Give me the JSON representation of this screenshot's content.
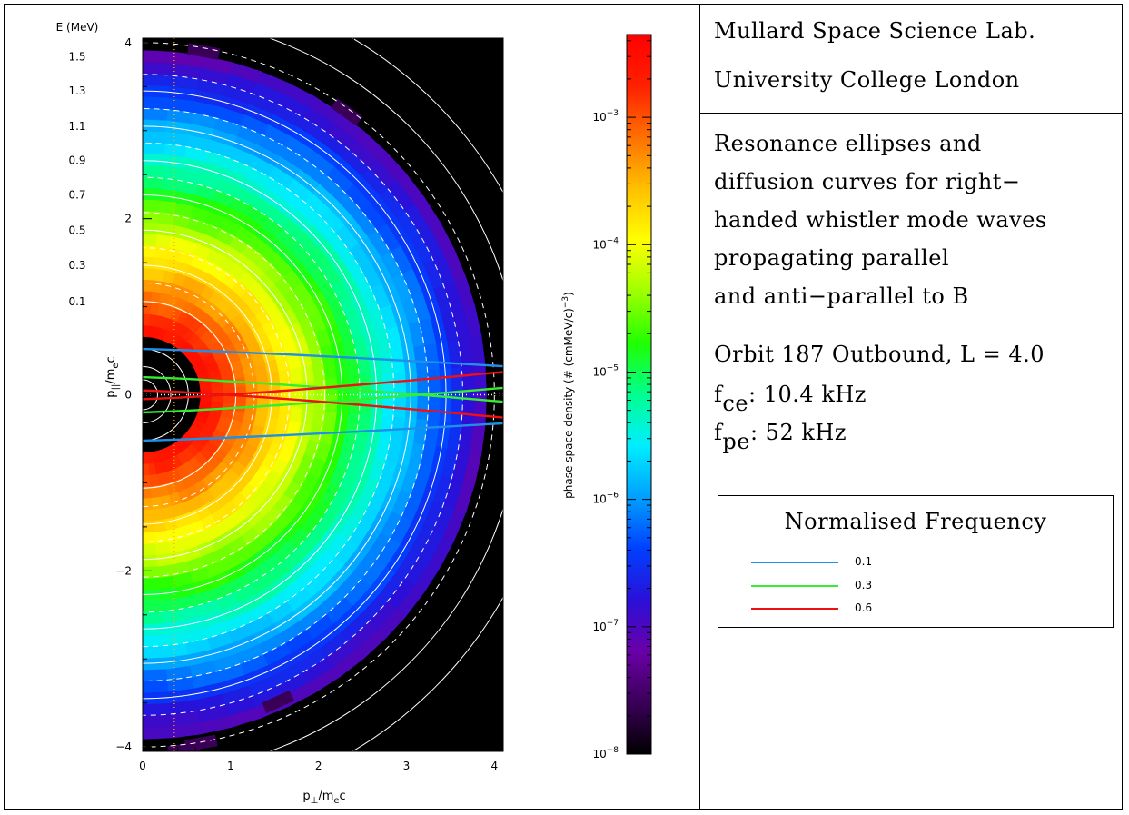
{
  "header": {
    "lab_lines": [
      "Mullard Space Science Lab.",
      "University College London"
    ]
  },
  "description": {
    "lines": [
      "Resonance ellipses and",
      "diffusion curves for right−",
      "handed whistler mode waves",
      "propagating parallel",
      "and anti−parallel to B"
    ],
    "orbit": "Orbit 187 Outbound, L = 4.0",
    "fce_sub": "ce",
    "fce_value": ": 10.4 kHz",
    "fpe_sub": "pe",
    "fpe_value": ": 52 kHz",
    "f_symbol": "f"
  },
  "legend": {
    "title": "Normalised Frequency",
    "entries": [
      {
        "label": "0.1",
        "color": "#1f8fe8"
      },
      {
        "label": "0.3",
        "color": "#33ee33"
      },
      {
        "label": "0.6",
        "color": "#ee1111"
      }
    ]
  },
  "colorbar": {
    "label_prefix": "phase space density (# (cmMeV/c)",
    "label_exp": "−3",
    "label_suffix": ")",
    "ticks": [
      {
        "mant": "10",
        "exp": "−3"
      },
      {
        "mant": "10",
        "exp": "−4"
      },
      {
        "mant": "10",
        "exp": "−5"
      },
      {
        "mant": "10",
        "exp": "−6"
      },
      {
        "mant": "10",
        "exp": "−7"
      },
      {
        "mant": "10",
        "exp": "−8"
      }
    ],
    "log_range": [
      -8,
      -2.35
    ],
    "stops": [
      "#000000",
      "#3a0058",
      "#6a00a8",
      "#2a10d8",
      "#0040ff",
      "#00a0ff",
      "#00eeff",
      "#00ff90",
      "#20ff00",
      "#a0ff00",
      "#ffff00",
      "#ffc000",
      "#ff7000",
      "#ff2000",
      "#ff0000"
    ]
  },
  "chart_data": {
    "type": "heatmap",
    "xlabel": {
      "main": "p",
      "sub": "⊥",
      "rest": "/m",
      "sub2": "e",
      "tail": "c"
    },
    "ylabel": {
      "main": "p",
      "sub": "||",
      "rest": "/m",
      "sub2": "e",
      "tail": "c"
    },
    "xlim": [
      0,
      4.1
    ],
    "ylim": [
      -4.05,
      4.05
    ],
    "x_ticks": [
      "0",
      "1",
      "2",
      "3",
      "4"
    ],
    "y_ticks": [
      "−4",
      "−2",
      "0",
      "2",
      "4"
    ],
    "energy_axis_title": "E (MeV)",
    "energy_ticks": [
      "1.5",
      "1.3",
      "1.1",
      "0.9",
      "0.7",
      "0.5",
      "0.3",
      "0.1"
    ],
    "energy_tick_momentum": [
      3.84,
      3.45,
      3.05,
      2.66,
      2.27,
      1.87,
      1.47,
      1.06
    ],
    "density_log10_center": -2.5,
    "density_log10_slope_per_p": -1.41,
    "black_core_radius": 0.68,
    "outer_cutoff_radius": 3.82,
    "resonance_curves": [
      {
        "name": "0.1",
        "color": "#1f8fe8",
        "p_par_at_0": 0.52,
        "p_par_at_4": 0.33
      },
      {
        "name": "0.3",
        "color": "#33ee33",
        "p_par_at_0": 0.2,
        "p_par_at_4": -0.07
      },
      {
        "name": "0.6",
        "color": "#ee1111",
        "p_par_at_0": 0.05,
        "p_par_at_4": -0.25
      }
    ],
    "solid_energy_circles": [
      0.17,
      0.32,
      0.52,
      1.06,
      1.47,
      1.87,
      2.27,
      2.66,
      3.05,
      3.45,
      4.3,
      4.7
    ],
    "dashed_energy_circles": [
      1.27,
      1.67,
      2.07,
      2.47,
      2.86,
      3.25,
      3.64,
      4.0
    ]
  }
}
